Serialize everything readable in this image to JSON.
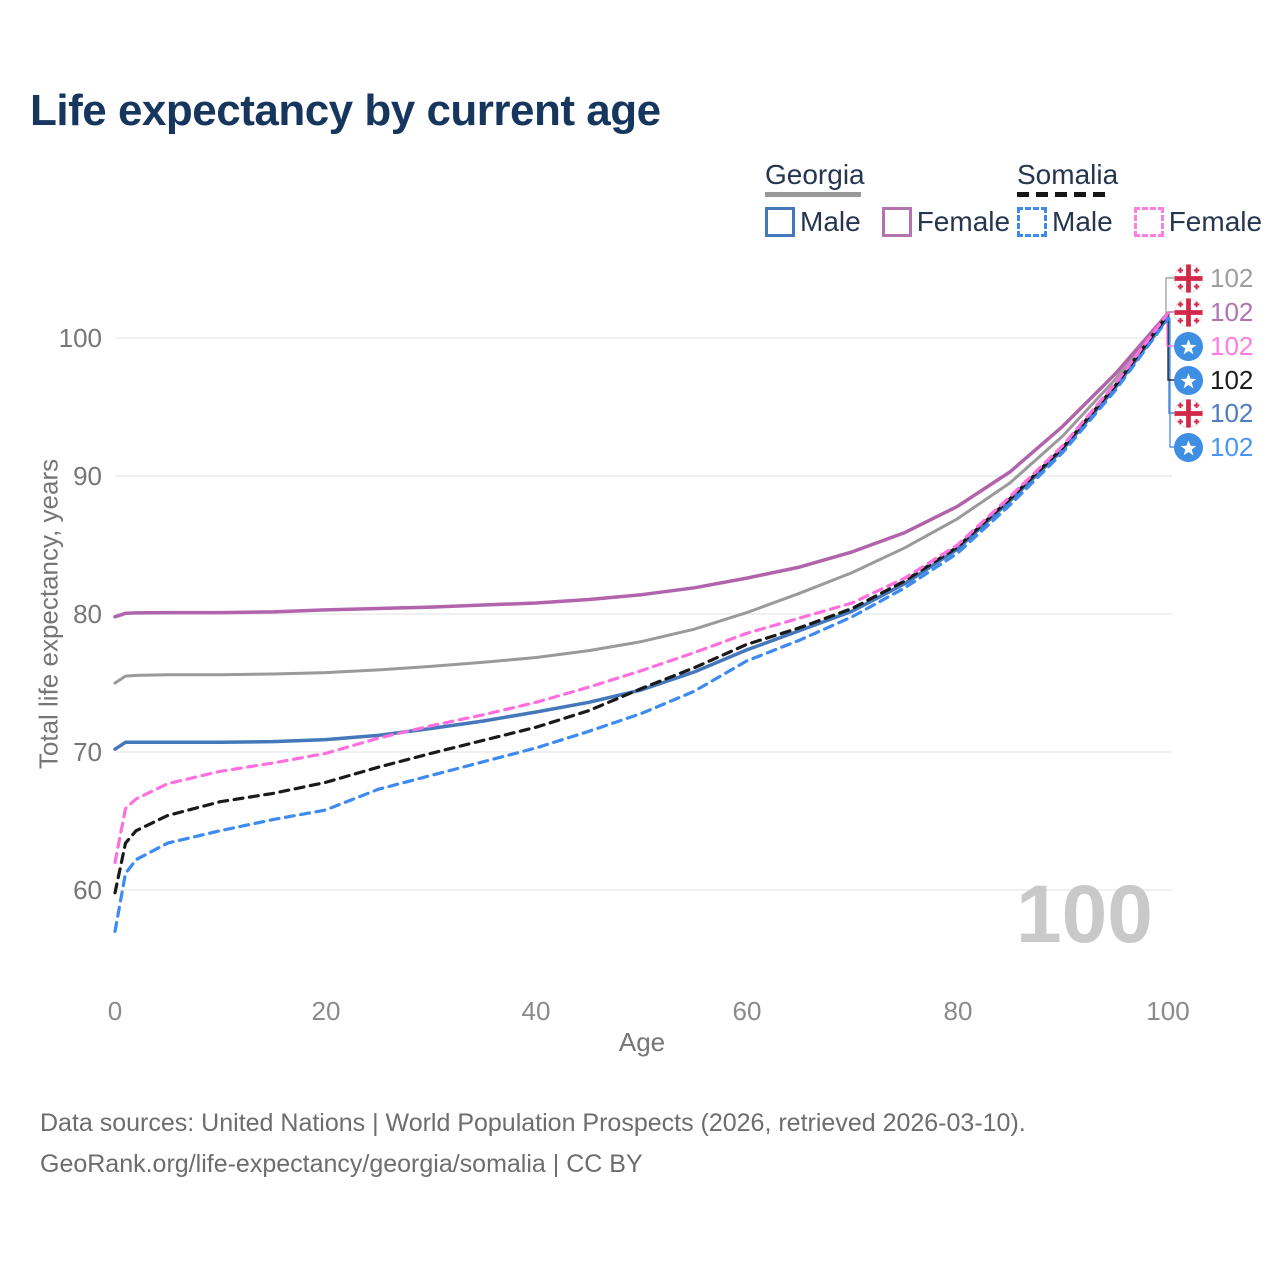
{
  "title": "Life expectancy by current age",
  "legend": {
    "georgia": {
      "label": "Georgia",
      "male": "Male",
      "female": "Female"
    },
    "somalia": {
      "label": "Somalia",
      "male": "Male",
      "female": "Female"
    }
  },
  "watermark": "100",
  "footer": {
    "line1": "Data sources: United Nations | World Population Prospects (2026, retrieved 2026-03-10).",
    "line2": "GeoRank.org/life-expectancy/georgia/somalia | CC BY"
  },
  "end_labels": [
    {
      "series": "georgia_total",
      "flag": "georgia",
      "value": "102",
      "color": "#9e9e9e"
    },
    {
      "series": "georgia_female",
      "flag": "georgia",
      "value": "102",
      "color": "#b272b2"
    },
    {
      "series": "somalia_female",
      "flag": "somalia",
      "value": "102",
      "color": "#ff7ce4"
    },
    {
      "series": "somalia_total",
      "flag": "somalia",
      "value": "102",
      "color": "#1c1c1c"
    },
    {
      "series": "georgia_male",
      "flag": "georgia",
      "value": "102",
      "color": "#4d7dc0"
    },
    {
      "series": "somalia_male",
      "flag": "somalia",
      "value": "102",
      "color": "#4896f5"
    }
  ],
  "chart_data": {
    "type": "line",
    "title": "Life expectancy by current age",
    "xlabel": "Age",
    "ylabel": "Total life expectancy, years",
    "xlim": [
      0,
      100
    ],
    "ylim": [
      55,
      105
    ],
    "x_ticks": [
      0,
      20,
      40,
      60,
      80,
      100
    ],
    "y_ticks": [
      60,
      70,
      80,
      90,
      100
    ],
    "grid": "horizontal",
    "legend_position": "top-right",
    "x": [
      0,
      1,
      2,
      5,
      10,
      15,
      20,
      25,
      30,
      35,
      40,
      45,
      50,
      55,
      60,
      65,
      70,
      75,
      80,
      85,
      90,
      95,
      100
    ],
    "series": [
      {
        "id": "georgia_total",
        "name": "Georgia Total",
        "color": "#9a9a9a",
        "dash": "solid",
        "width": 3,
        "values": [
          75.0,
          75.5,
          75.55,
          75.6,
          75.6,
          75.65,
          75.75,
          75.95,
          76.2,
          76.5,
          76.85,
          77.35,
          78.0,
          78.9,
          80.1,
          81.5,
          83.0,
          84.8,
          86.9,
          89.5,
          92.9,
          97.0,
          101.7
        ]
      },
      {
        "id": "georgia_female",
        "name": "Georgia Female",
        "color": "#b164ac",
        "dash": "solid",
        "width": 3.5,
        "values": [
          79.8,
          80.05,
          80.08,
          80.1,
          80.1,
          80.15,
          80.3,
          80.4,
          80.5,
          80.65,
          80.8,
          81.05,
          81.4,
          81.9,
          82.6,
          83.4,
          84.5,
          85.9,
          87.8,
          90.3,
          93.6,
          97.4,
          101.8
        ]
      },
      {
        "id": "georgia_male",
        "name": "Georgia Male",
        "color": "#4478bb",
        "dash": "solid",
        "width": 3.5,
        "values": [
          70.2,
          70.7,
          70.7,
          70.7,
          70.7,
          70.75,
          70.9,
          71.2,
          71.7,
          72.25,
          72.9,
          73.6,
          74.5,
          75.8,
          77.4,
          78.8,
          80.2,
          82.2,
          84.7,
          88.2,
          91.9,
          96.4,
          101.5
        ]
      },
      {
        "id": "somalia_male",
        "name": "Somalia Male",
        "color": "#3d8bf0",
        "dash": "dashed",
        "width": 3.2,
        "values": [
          57.0,
          61.2,
          62.2,
          63.4,
          64.3,
          65.1,
          65.8,
          67.3,
          68.3,
          69.3,
          70.3,
          71.5,
          72.8,
          74.4,
          76.6,
          78.1,
          79.8,
          81.9,
          84.4,
          87.9,
          91.7,
          96.2,
          101.4
        ]
      },
      {
        "id": "somalia_total",
        "name": "Somalia Total",
        "color": "#1a1a1a",
        "dash": "dashed",
        "width": 3.2,
        "values": [
          59.8,
          63.4,
          64.3,
          65.4,
          66.4,
          67.0,
          67.8,
          68.9,
          69.9,
          70.85,
          71.8,
          73.0,
          74.6,
          76.1,
          77.8,
          79.0,
          80.4,
          82.4,
          84.85,
          88.35,
          92.05,
          96.55,
          101.7
        ]
      },
      {
        "id": "somalia_female",
        "name": "Somalia Female",
        "color": "#ff70de",
        "dash": "dashed",
        "width": 3.2,
        "values": [
          62.0,
          65.9,
          66.6,
          67.7,
          68.6,
          69.2,
          69.9,
          71.0,
          71.9,
          72.7,
          73.6,
          74.7,
          75.9,
          77.2,
          78.6,
          79.7,
          80.8,
          82.6,
          85.0,
          88.5,
          92.2,
          96.7,
          101.8
        ]
      }
    ]
  }
}
